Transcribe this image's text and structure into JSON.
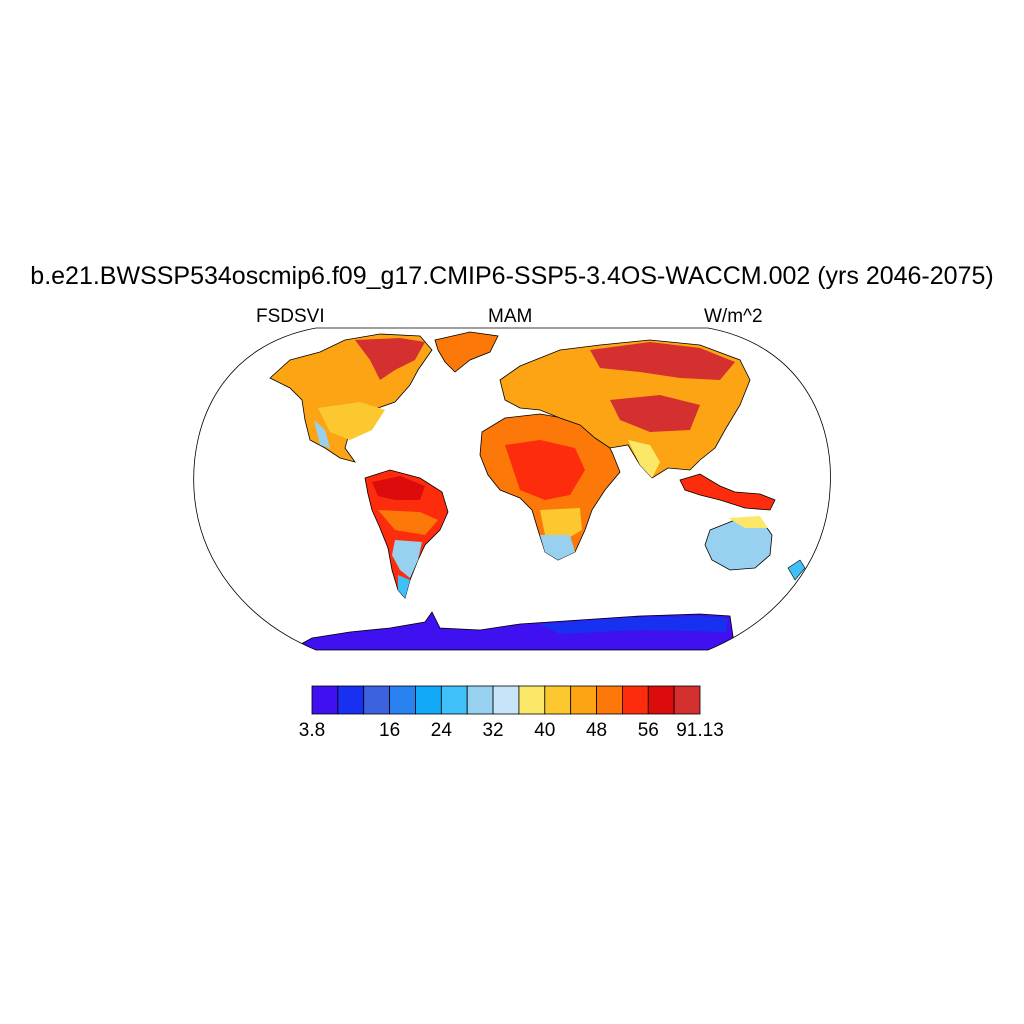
{
  "title": "b.e21.BWSSP534oscmip6.f09_g17.CMIP6-SSP5-3.4OS-WACCM.002 (yrs 2046-2075)",
  "subtitles": {
    "left": "FSDSVI",
    "center": "MAM",
    "right": "W/m^2"
  },
  "colorbar": {
    "colors": [
      "#3f10f0",
      "#1830f0",
      "#3c62e0",
      "#2a82f0",
      "#12aaf8",
      "#40c0f8",
      "#98d0f0",
      "#c8e4f8",
      "#fce868",
      "#fcc830",
      "#fca414",
      "#fc7808",
      "#fc2c0c",
      "#dc0c0c",
      "#d43030"
    ],
    "tick_labels": [
      {
        "text": "3.8",
        "boundary": 0
      },
      {
        "text": "16",
        "boundary": 3
      },
      {
        "text": "24",
        "boundary": 5
      },
      {
        "text": "32",
        "boundary": 7
      },
      {
        "text": "40",
        "boundary": 9
      },
      {
        "text": "48",
        "boundary": 11
      },
      {
        "text": "56",
        "boundary": 13
      },
      {
        "text": "91.13",
        "boundary": 15
      }
    ]
  },
  "map": {
    "projection": "robinson",
    "ocean_color": "#ffffff",
    "coastline_color": "#000000"
  }
}
